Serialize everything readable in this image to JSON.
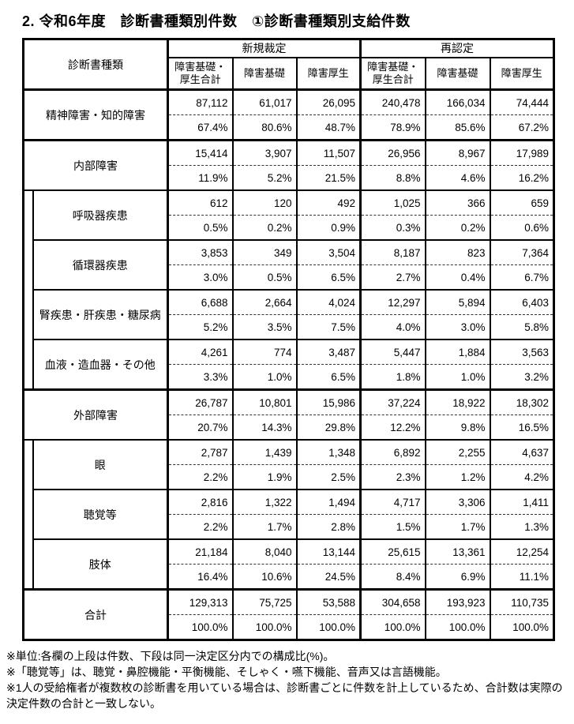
{
  "title": "2. 令和6年度　診断書種類別件数　①診断書種類別支給件数",
  "table": {
    "corner_header": "診断書種類",
    "groups": [
      {
        "label": "新規裁定",
        "columns": [
          "障害基礎・\n厚生合計",
          "障害基礎",
          "障害厚生"
        ]
      },
      {
        "label": "再認定",
        "columns": [
          "障害基礎・\n厚生合計",
          "障害基礎",
          "障害厚生"
        ]
      }
    ],
    "sections": [
      {
        "rows": [
          {
            "label": "精神障害・知的障害",
            "sub": false,
            "counts": [
              "87,112",
              "61,017",
              "26,095",
              "240,478",
              "166,034",
              "74,444"
            ],
            "percents": [
              "67.4%",
              "80.6%",
              "48.7%",
              "78.9%",
              "85.6%",
              "67.2%"
            ]
          }
        ]
      },
      {
        "rows": [
          {
            "label": "内部障害",
            "sub": false,
            "counts": [
              "15,414",
              "3,907",
              "11,507",
              "26,956",
              "8,967",
              "17,989"
            ],
            "percents": [
              "11.9%",
              "5.2%",
              "21.5%",
              "8.8%",
              "4.6%",
              "16.2%"
            ]
          },
          {
            "label": "呼吸器疾患",
            "sub": true,
            "counts": [
              "612",
              "120",
              "492",
              "1,025",
              "366",
              "659"
            ],
            "percents": [
              "0.5%",
              "0.2%",
              "0.9%",
              "0.3%",
              "0.2%",
              "0.6%"
            ]
          },
          {
            "label": "循環器疾患",
            "sub": true,
            "counts": [
              "3,853",
              "349",
              "3,504",
              "8,187",
              "823",
              "7,364"
            ],
            "percents": [
              "3.0%",
              "0.5%",
              "6.5%",
              "2.7%",
              "0.4%",
              "6.7%"
            ]
          },
          {
            "label": "腎疾患・肝疾患・糖尿病",
            "sub": true,
            "counts": [
              "6,688",
              "2,664",
              "4,024",
              "12,297",
              "5,894",
              "6,403"
            ],
            "percents": [
              "5.2%",
              "3.5%",
              "7.5%",
              "4.0%",
              "3.0%",
              "5.8%"
            ]
          },
          {
            "label": "血液・造血器・その他",
            "sub": true,
            "counts": [
              "4,261",
              "774",
              "3,487",
              "5,447",
              "1,884",
              "3,563"
            ],
            "percents": [
              "3.3%",
              "1.0%",
              "6.5%",
              "1.8%",
              "1.0%",
              "3.2%"
            ]
          }
        ]
      },
      {
        "rows": [
          {
            "label": "外部障害",
            "sub": false,
            "counts": [
              "26,787",
              "10,801",
              "15,986",
              "37,224",
              "18,922",
              "18,302"
            ],
            "percents": [
              "20.7%",
              "14.3%",
              "29.8%",
              "12.2%",
              "9.8%",
              "16.5%"
            ]
          },
          {
            "label": "眼",
            "sub": true,
            "counts": [
              "2,787",
              "1,439",
              "1,348",
              "6,892",
              "2,255",
              "4,637"
            ],
            "percents": [
              "2.2%",
              "1.9%",
              "2.5%",
              "2.3%",
              "1.2%",
              "4.2%"
            ]
          },
          {
            "label": "聴覚等",
            "sub": true,
            "counts": [
              "2,816",
              "1,322",
              "1,494",
              "4,717",
              "3,306",
              "1,411"
            ],
            "percents": [
              "2.2%",
              "1.7%",
              "2.8%",
              "1.5%",
              "1.7%",
              "1.3%"
            ]
          },
          {
            "label": "肢体",
            "sub": true,
            "counts": [
              "21,184",
              "8,040",
              "13,144",
              "25,615",
              "13,361",
              "12,254"
            ],
            "percents": [
              "16.4%",
              "10.6%",
              "24.5%",
              "8.4%",
              "6.9%",
              "11.1%"
            ]
          }
        ]
      },
      {
        "rows": [
          {
            "label": "合計",
            "sub": false,
            "counts": [
              "129,313",
              "75,725",
              "53,588",
              "304,658",
              "193,923",
              "110,735"
            ],
            "percents": [
              "100.0%",
              "100.0%",
              "100.0%",
              "100.0%",
              "100.0%",
              "100.0%"
            ]
          }
        ]
      }
    ]
  },
  "footnotes": [
    "※単位:各欄の上段は件数、下段は同一決定区分内での構成比(%)。",
    "※「聴覚等」は、聴覚・鼻腔機能・平衡機能、そしゃく・嚥下機能、音声又は言語機能。",
    "※1人の受給権者が複数枚の診断書を用いている場合は、診断書ごとに件数を計上しているため、合計数は実際の決定件数の合計と一致しない。"
  ]
}
